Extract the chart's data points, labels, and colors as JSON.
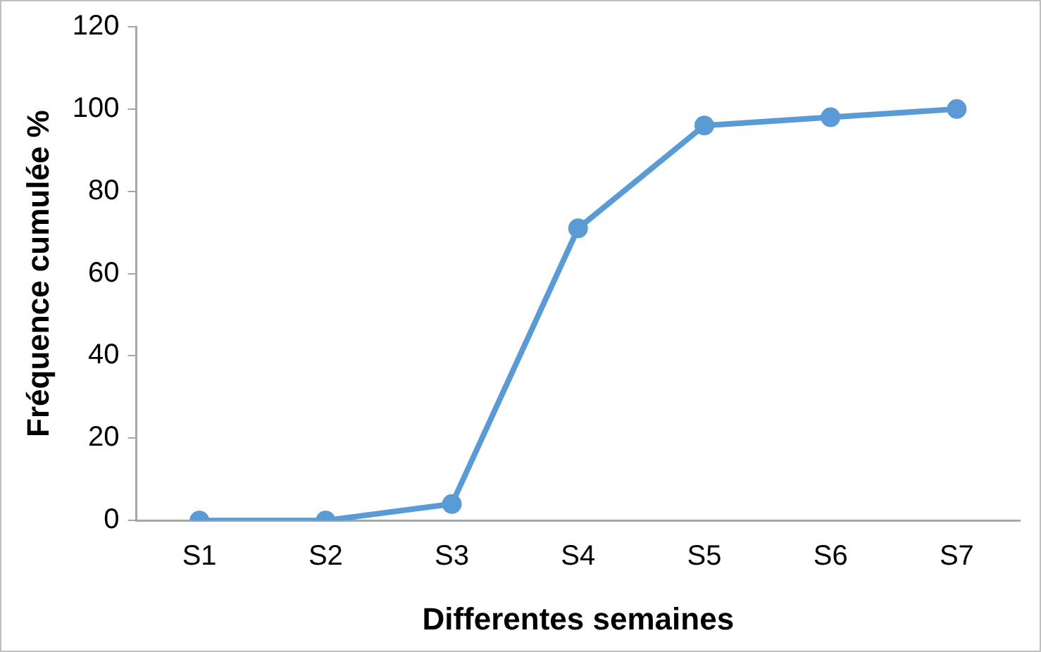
{
  "chart_data": {
    "type": "line",
    "xlabel": "Differentes semaines",
    "ylabel": "Fréquence cumulée %",
    "categories": [
      "S1",
      "S2",
      "S3",
      "S4",
      "S5",
      "S6",
      "S7"
    ],
    "series": [
      {
        "color": "#5b9bd5",
        "values": [
          0,
          0,
          4,
          71,
          96,
          98,
          100
        ]
      }
    ],
    "ylim": [
      0,
      120
    ],
    "yticks": [
      0,
      20,
      40,
      60,
      80,
      100,
      120
    ],
    "grid": false,
    "legend": false,
    "marker": "circle",
    "line_style": "solid"
  }
}
